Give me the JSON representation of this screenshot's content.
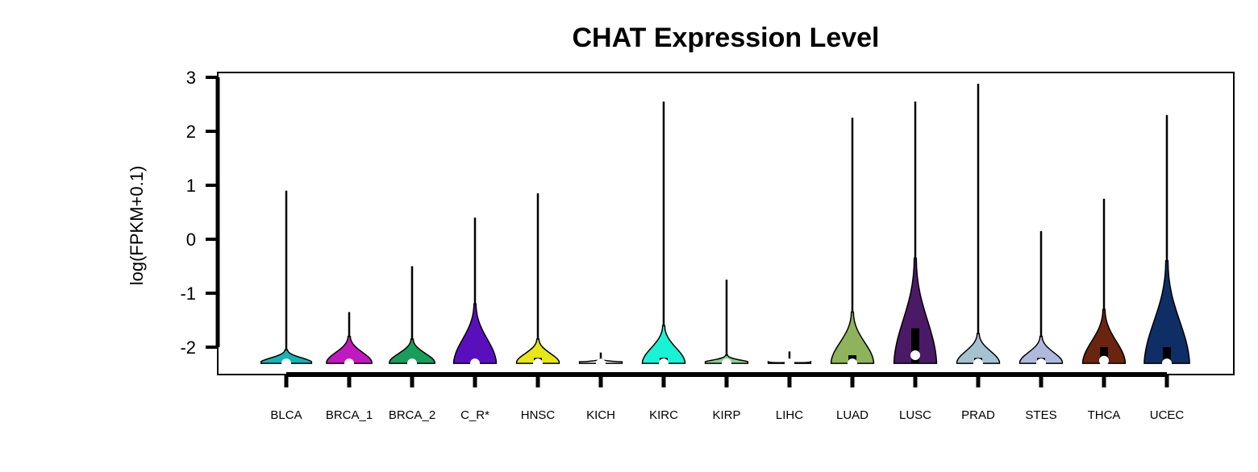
{
  "chart_data": {
    "type": "violin",
    "title": "CHAT Expression Level",
    "xlabel": "",
    "ylabel": "log(FPKM+0.1)",
    "ylim": [
      -2.5,
      3.1
    ],
    "yticks": [
      -2,
      -1,
      0,
      1,
      2,
      3
    ],
    "ytick_labels": [
      "-2",
      "-1",
      "0",
      "1",
      "2",
      "3"
    ],
    "grid": false,
    "legend": "none",
    "categories": [
      "BLCA",
      "BRCA_1",
      "BRCA_2",
      "C_R*",
      "HNSC",
      "KICH",
      "KIRC",
      "KIRP",
      "LIHC",
      "LUAD",
      "LUSC",
      "PRAD",
      "STES",
      "THCA",
      "UCEC"
    ],
    "series": [
      {
        "category": "BLCA",
        "color": "#1AB3B3",
        "min": -2.3,
        "max": 0.9,
        "median": -2.3,
        "q1": -2.3,
        "q3": -2.3,
        "width": 0.95,
        "bulge_top": -2.05
      },
      {
        "category": "BRCA_1",
        "color": "#BF1ABF",
        "min": -2.3,
        "max": -1.35,
        "median": -2.3,
        "q1": -2.3,
        "q3": -2.3,
        "width": 0.85,
        "bulge_top": -1.8
      },
      {
        "category": "BRCA_2",
        "color": "#1A9C5A",
        "min": -2.3,
        "max": -0.5,
        "median": -2.3,
        "q1": -2.3,
        "q3": -2.3,
        "width": 0.85,
        "bulge_top": -1.85
      },
      {
        "category": "C_R*",
        "color": "#5A0FBF",
        "min": -2.3,
        "max": 0.4,
        "median": -2.3,
        "q1": -2.3,
        "q3": -2.3,
        "width": 0.8,
        "bulge_top": -1.2
      },
      {
        "category": "HNSC",
        "color": "#E6E61A",
        "min": -2.3,
        "max": 0.85,
        "median": -2.3,
        "q1": -2.3,
        "q3": -2.2,
        "width": 0.8,
        "bulge_top": -1.85
      },
      {
        "category": "KICH",
        "color": "#F2F2F2",
        "min": -2.3,
        "max": -2.1,
        "median": -2.3,
        "q1": -2.3,
        "q3": -2.3,
        "width": 0.8,
        "bulge_top": -2.22
      },
      {
        "category": "KIRC",
        "color": "#1AF2D6",
        "min": -2.3,
        "max": 2.55,
        "median": -2.3,
        "q1": -2.3,
        "q3": -2.2,
        "width": 0.8,
        "bulge_top": -1.6
      },
      {
        "category": "KIRP",
        "color": "#8FCC99",
        "min": -2.3,
        "max": -0.75,
        "median": -2.3,
        "q1": -2.3,
        "q3": -2.3,
        "width": 0.8,
        "bulge_top": -2.15
      },
      {
        "category": "LIHC",
        "color": "#E6E6E6",
        "min": -2.3,
        "max": -2.08,
        "median": -2.3,
        "q1": -2.3,
        "q3": -2.3,
        "width": 0.8,
        "bulge_top": -2.28
      },
      {
        "category": "LUAD",
        "color": "#8FB35C",
        "min": -2.3,
        "max": 2.25,
        "median": -2.3,
        "q1": -2.3,
        "q3": -2.15,
        "width": 0.8,
        "bulge_top": -1.35
      },
      {
        "category": "LUSC",
        "color": "#4A1A66",
        "min": -2.3,
        "max": 2.55,
        "median": -2.15,
        "q1": -2.3,
        "q3": -1.65,
        "width": 0.8,
        "bulge_top": -0.35
      },
      {
        "category": "PRAD",
        "color": "#A6C2D1",
        "min": -2.3,
        "max": 2.88,
        "median": -2.3,
        "q1": -2.3,
        "q3": -2.2,
        "width": 0.8,
        "bulge_top": -1.75
      },
      {
        "category": "STES",
        "color": "#B0B8DE",
        "min": -2.3,
        "max": 0.15,
        "median": -2.3,
        "q1": -2.3,
        "q3": -2.2,
        "width": 0.8,
        "bulge_top": -1.8
      },
      {
        "category": "THCA",
        "color": "#6B2410",
        "min": -2.3,
        "max": 0.75,
        "median": -2.25,
        "q1": -2.3,
        "q3": -2.0,
        "width": 0.8,
        "bulge_top": -1.3
      },
      {
        "category": "UCEC",
        "color": "#0F2E66",
        "min": -2.3,
        "max": 2.3,
        "median": -2.3,
        "q1": -2.3,
        "q3": -2.0,
        "width": 0.85,
        "bulge_top": -0.4
      }
    ]
  }
}
